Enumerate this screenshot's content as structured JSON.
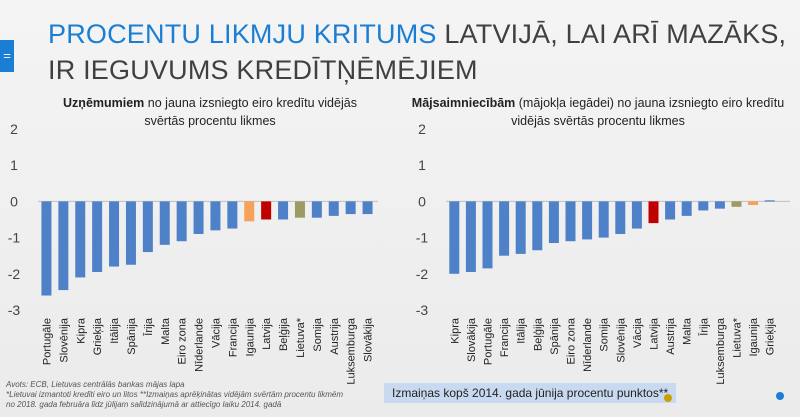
{
  "title": {
    "accent": "PROCENTU LIKMJU KRITUMS",
    "rest": " LATVIJĀ, LAI ARĪ MAZĀKS, IR IEGUVUMS KREDĪTŅĒMĒJIEM"
  },
  "slide_tab_icon": "equals-icon",
  "left_subtitle": {
    "bold": "Uzņēmumiem",
    "line1_rest": " no jauna izsniegto eiro kredītu vidējās",
    "line2": "svērtās procentu likmes"
  },
  "right_subtitle": {
    "bold": "Mājsaimniecībām",
    "line1_rest": " (mājokļa iegādei) no jauna izsniegto eiro kredītu",
    "line2": "vidējās svērtās procentu likmes"
  },
  "footnote": {
    "line1": "Avots: ECB, Lietuvas centrālās bankas mājas lapa",
    "line2": "*Lietuvai izmantoti kredīti eiro un litos **Izmaiņas aprēķinātas vidējām svērtām procentu likmēm",
    "line3": "no 2018. gada februāra līdz jūlijam salīdzinājumā ar attiecīgo laiku 2014. gadā"
  },
  "legend_note": "Izmaiņas kopš 2014. gada jūnija procentu punktos**",
  "colors": {
    "default_bar": "#4f81c8",
    "latvia_bar": "#c00000",
    "lithuania_bar": "#9b9b63",
    "estonia_bar": "#f7a15a",
    "accent": "#1a7fd4",
    "dot_left": "#c9a000",
    "dot_right": "#1a7fd4"
  },
  "chart_data": [
    {
      "type": "bar",
      "title": "Uzņēmumiem no jauna izsniegto eiro kredītu vidējās svērtās procentu likmes",
      "ylim": [
        -3,
        2
      ],
      "yticks": [
        -3,
        -2,
        -1,
        0,
        1,
        2
      ],
      "categories": [
        "Portugāle",
        "Slovēnija",
        "Kipra",
        "Grieķija",
        "Itālija",
        "Spānija",
        "Īrija",
        "Malta",
        "Eiro zona",
        "Nīderlande",
        "Vācija",
        "Francija",
        "Igaunija",
        "Latvija",
        "Beļģija",
        "Lietuva*",
        "Somija",
        "Austrija",
        "Luksemburga",
        "Slovākija"
      ],
      "values": [
        -2.6,
        -2.45,
        -2.1,
        -1.95,
        -1.8,
        -1.75,
        -1.4,
        -1.2,
        -1.1,
        -0.9,
        -0.8,
        -0.75,
        -0.55,
        -0.5,
        -0.5,
        -0.45,
        -0.45,
        -0.4,
        -0.35,
        -0.35
      ],
      "highlights": {
        "Igaunija": "estonia_bar",
        "Latvija": "latvia_bar",
        "Lietuva*": "lithuania_bar"
      }
    },
    {
      "type": "bar",
      "title": "Mājsaimniecībām (mājokļa iegādei) no jauna izsniegto eiro kredītu vidējās svērtās procentu likmes",
      "ylim": [
        -3,
        2
      ],
      "yticks": [
        -3,
        -2,
        -1,
        0,
        1,
        2
      ],
      "categories": [
        "Kipra",
        "Slovākija",
        "Portugāle",
        "Francija",
        "Itālija",
        "Beļģija",
        "Spānija",
        "Eiro zona",
        "Nīderlande",
        "Somija",
        "Slovēnija",
        "Vācija",
        "Latvija",
        "Austrija",
        "Malta",
        "Īrija",
        "Luksemburga",
        "Lietuva*",
        "Igaunija",
        "Grieķija"
      ],
      "values": [
        -2.0,
        -1.95,
        -1.85,
        -1.5,
        -1.45,
        -1.35,
        -1.15,
        -1.1,
        -1.05,
        -1.0,
        -0.9,
        -0.75,
        -0.6,
        -0.5,
        -0.4,
        -0.25,
        -0.2,
        -0.15,
        -0.1,
        0.03
      ],
      "highlights": {
        "Latvija": "latvia_bar",
        "Lietuva*": "lithuania_bar",
        "Igaunija": "estonia_bar"
      }
    }
  ]
}
